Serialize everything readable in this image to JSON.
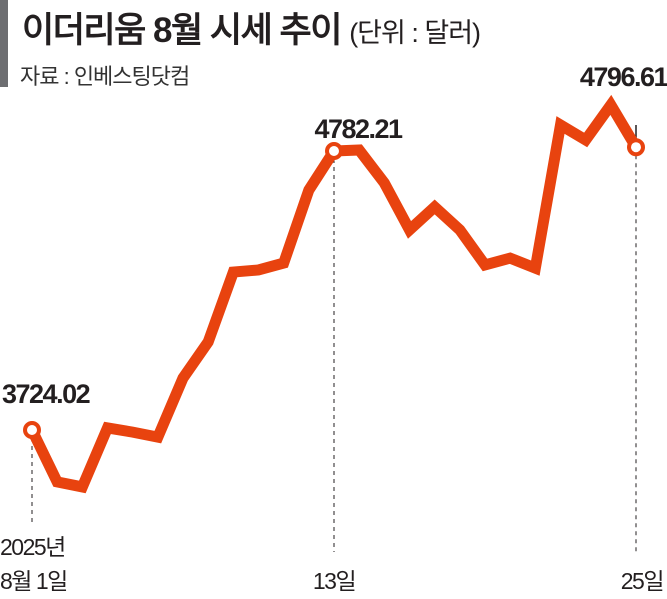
{
  "chart_data": {
    "type": "line",
    "title": "이더리움 8월 시세 추이",
    "unit": "(단위 : 달러)",
    "source": "자료 : 인베스팅닷컴",
    "x": [
      1,
      2,
      3,
      4,
      5,
      6,
      7,
      8,
      9,
      10,
      11,
      12,
      13,
      14,
      15,
      16,
      17,
      18,
      19,
      20,
      21,
      22,
      23,
      24,
      25
    ],
    "values": [
      3724.02,
      3527,
      3508,
      3732,
      3716,
      3697,
      3921,
      4058,
      4323,
      4331,
      4357,
      4634,
      4782.21,
      4786,
      4661,
      4483,
      4570,
      4483,
      4350,
      4376,
      4338,
      4881,
      4824,
      4957,
      4796.61
    ],
    "ylim": [
      3083,
      5355
    ],
    "highlights": [
      {
        "index": 0,
        "label": "3724.02"
      },
      {
        "index": 12,
        "label": "4782.21"
      },
      {
        "index": 24,
        "label": "4796.61"
      }
    ],
    "x_tick_labels": [
      {
        "day": 1,
        "lines": [
          "2025년",
          "8월 1일"
        ]
      },
      {
        "day": 13,
        "lines": [
          "13일"
        ]
      },
      {
        "day": 25,
        "lines": [
          "25일"
        ]
      }
    ],
    "line_color": "#e8430f",
    "grid": false
  }
}
